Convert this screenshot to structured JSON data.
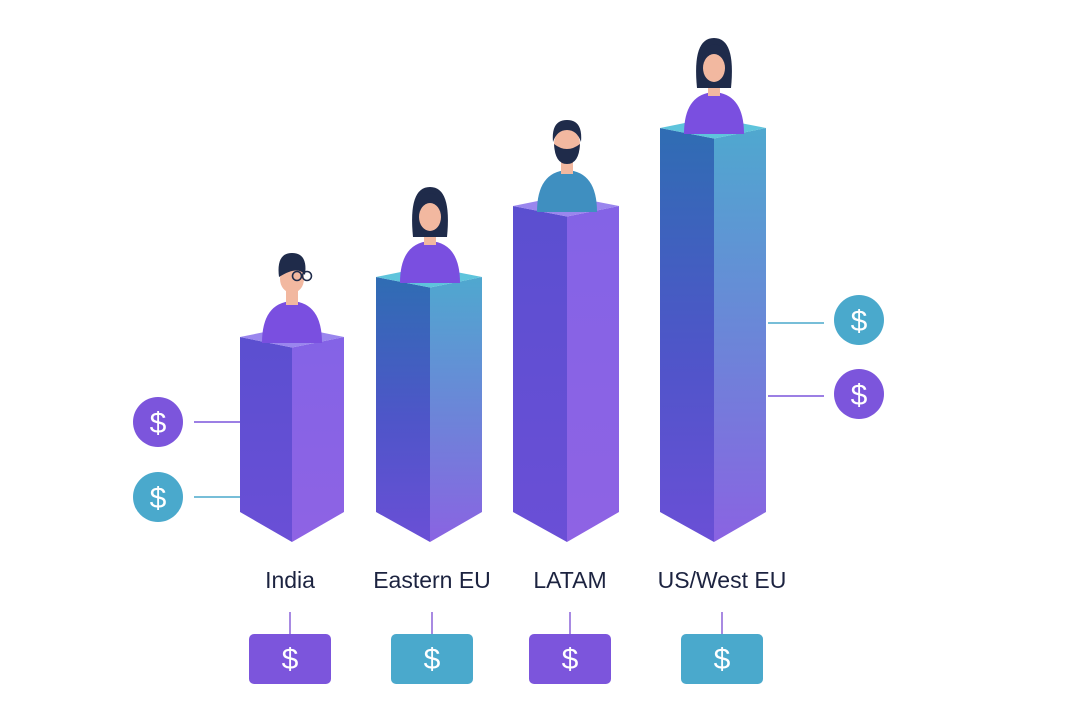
{
  "colors": {
    "purple": "#7c55dc",
    "teal": "#4aa9cc",
    "navy": "#1c2340",
    "skin": "#f2b8a0",
    "hair": "#1f2b4a",
    "line": "#8a63d8"
  },
  "chart_data": {
    "type": "bar",
    "categories": [
      "India",
      "Eastern EU",
      "LATAM",
      "US/West EU"
    ],
    "values": [
      1,
      2,
      3,
      4
    ],
    "avatars": [
      "person-glasses",
      "person-woman",
      "person-bearded-man",
      "person-woman"
    ],
    "currency_symbol": "$"
  }
}
